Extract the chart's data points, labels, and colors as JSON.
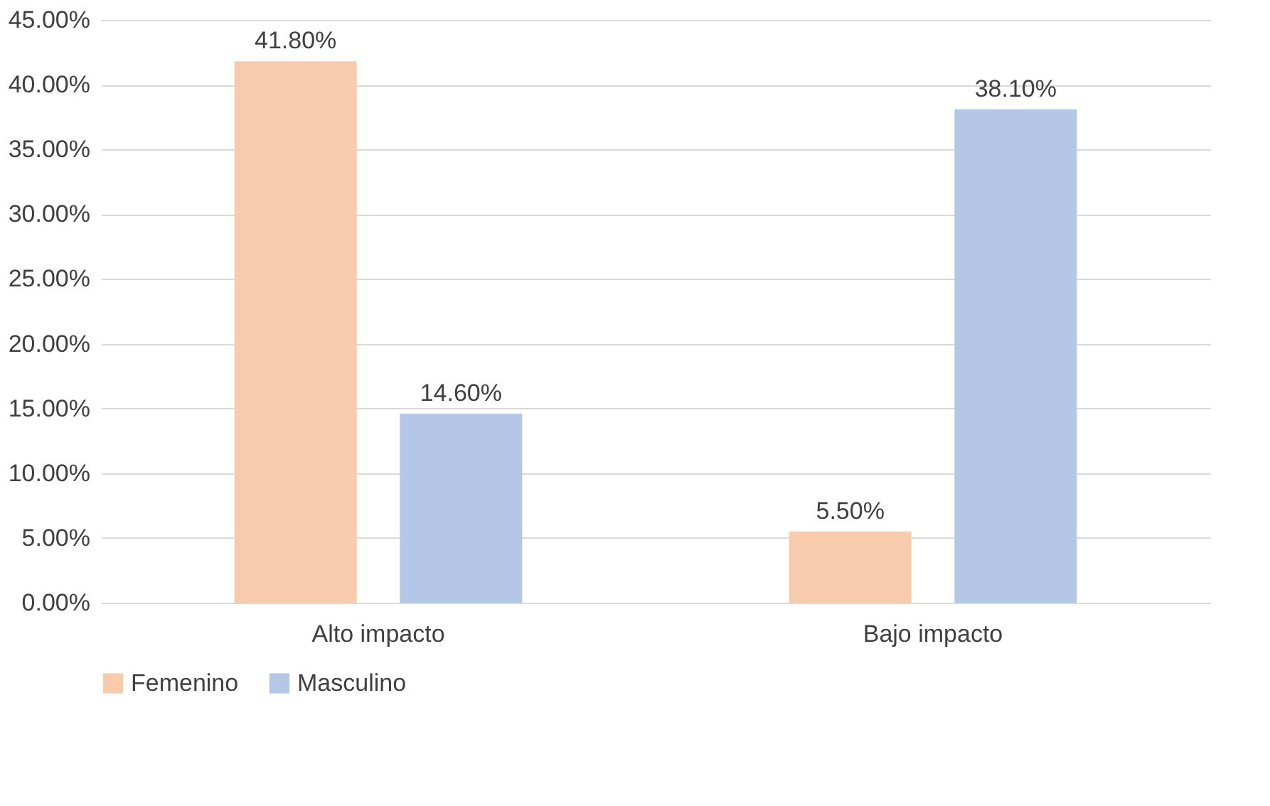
{
  "chart_data": {
    "type": "bar",
    "categories": [
      "Alto impacto",
      "Bajo impacto"
    ],
    "series": [
      {
        "name": "Femenino",
        "color": "#f8cbad",
        "values": [
          41.8,
          5.5
        ],
        "value_labels": [
          "41.80%",
          "5.50%"
        ]
      },
      {
        "name": "Masculino",
        "color": "#b4c7e7",
        "values": [
          14.6,
          38.1
        ],
        "value_labels": [
          "14.60%",
          "38.10%"
        ]
      }
    ],
    "ylim": [
      0,
      45
    ],
    "yticks": [
      {
        "value": 0,
        "label": "0.00%"
      },
      {
        "value": 5,
        "label": "5.00%"
      },
      {
        "value": 10,
        "label": "10.00%"
      },
      {
        "value": 15,
        "label": "15.00%"
      },
      {
        "value": 20,
        "label": "20.00%"
      },
      {
        "value": 25,
        "label": "25.00%"
      },
      {
        "value": 30,
        "label": "30.00%"
      },
      {
        "value": 35,
        "label": "35.00%"
      },
      {
        "value": 40,
        "label": "40.00%"
      },
      {
        "value": 45,
        "label": "45.00%"
      }
    ],
    "grid": "y",
    "legend": "bottom"
  }
}
